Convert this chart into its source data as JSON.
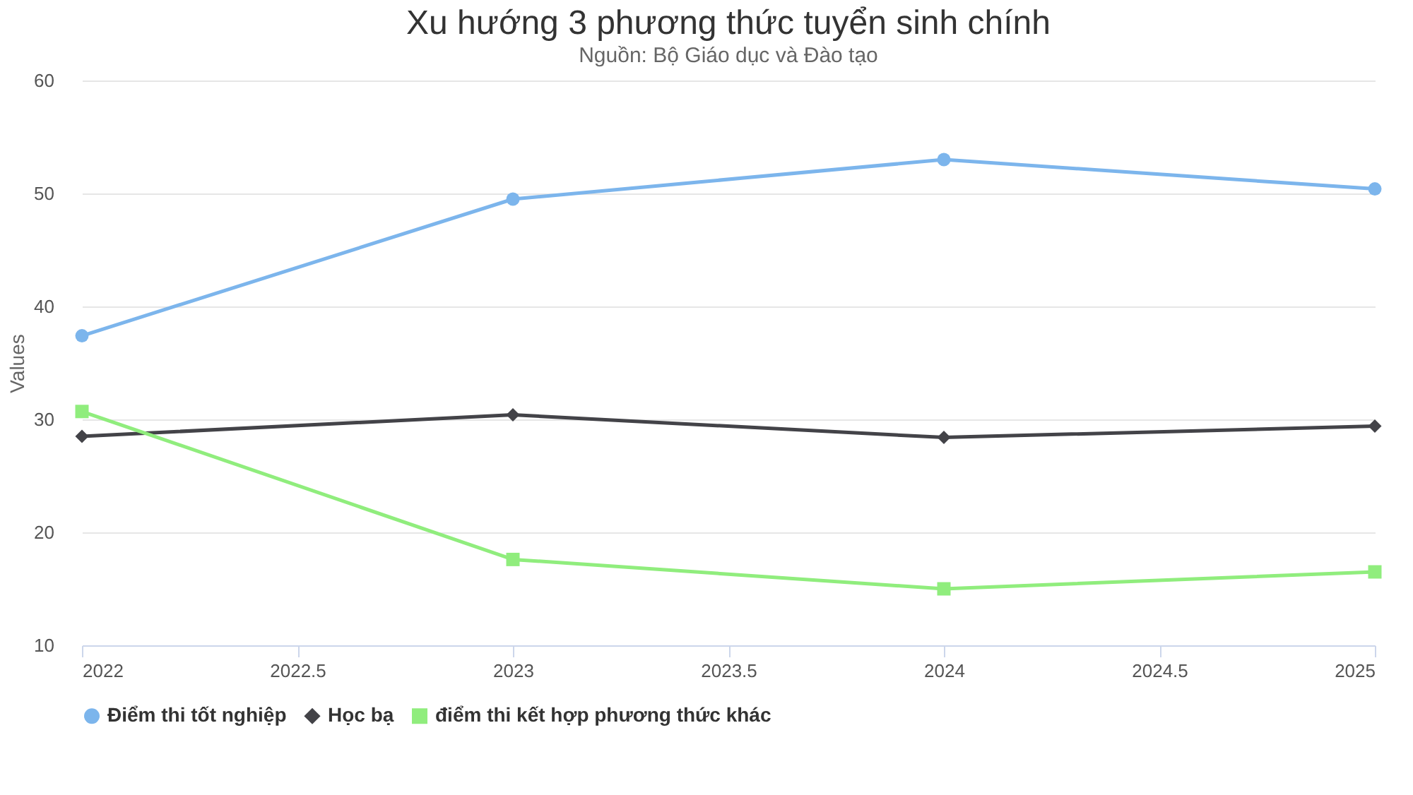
{
  "chart_data": {
    "type": "line",
    "title": "Xu hướng 3 phương thức tuyển sinh chính",
    "subtitle": "Nguồn: Bộ Giáo dục và Đào tạo",
    "ylabel": "Values",
    "x": [
      2022,
      2023,
      2024,
      2025
    ],
    "series": [
      {
        "name": "Điểm thi tốt nghiệp",
        "color": "#7cb5ec",
        "marker": "circle",
        "values": [
          37.4,
          49.5,
          53,
          50.4
        ]
      },
      {
        "name": "Học bạ",
        "color": "#434348",
        "marker": "diamond",
        "values": [
          28.5,
          30.4,
          28.4,
          29.4
        ]
      },
      {
        "name": "điểm thi kết hợp phương thức khác",
        "color": "#90ed7d",
        "marker": "square",
        "values": [
          30.7,
          17.6,
          15,
          16.5
        ]
      }
    ],
    "xlim": [
      2022,
      2025
    ],
    "xticks": [
      2022,
      2022.5,
      2023,
      2023.5,
      2024,
      2024.5,
      2025
    ],
    "ylim": [
      10,
      60
    ],
    "yticks": [
      10,
      20,
      30,
      40,
      50,
      60
    ],
    "grid": "y",
    "legend": "bottom",
    "line_style": "solid"
  }
}
